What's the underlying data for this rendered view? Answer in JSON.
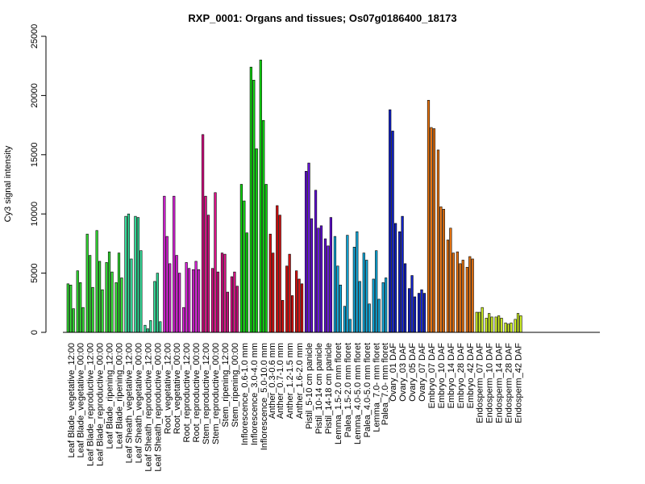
{
  "chart_data": {
    "type": "bar",
    "title": "RXP_0001: Organs and tissues; Os07g0186400_18173",
    "xlabel": "",
    "ylabel": "Cy3 signal intensity",
    "ylim": [
      0,
      25000
    ],
    "yticks": [
      0,
      5000,
      10000,
      15000,
      20000,
      25000
    ],
    "grid": false,
    "legend": "none",
    "groups": [
      {
        "label": "Leaf Blade_vegetative_12:00",
        "color": "#33dd33",
        "values": [
          4100,
          4000,
          2000
        ]
      },
      {
        "label": "Leaf Blade_vegetative_00:00",
        "color": "#33dd33",
        "values": [
          5200,
          4200,
          2100
        ]
      },
      {
        "label": "Leaf Blade_reproductive_12:00",
        "color": "#33dd33",
        "values": [
          8300,
          6500,
          3800
        ]
      },
      {
        "label": "Leaf Blade_reproductive_00:00",
        "color": "#33dd33",
        "values": [
          8600,
          6000,
          3600
        ]
      },
      {
        "label": "Leaf Blade_ripening_12:00",
        "color": "#33dd33",
        "values": [
          5900,
          6800,
          5100
        ]
      },
      {
        "label": "Leaf Blade_ripening_00:00",
        "color": "#33dd33",
        "values": [
          4200,
          6700,
          4600
        ]
      },
      {
        "label": "Leaf Sheath_vegetative_12:00",
        "color": "#33dd99",
        "values": [
          9800,
          10000,
          6200
        ]
      },
      {
        "label": "Leaf Sheath_vegetative_00:00",
        "color": "#33dd99",
        "values": [
          9800,
          9700,
          6900
        ]
      },
      {
        "label": "Leaf Sheath_reproductive_12:00",
        "color": "#33dd99",
        "values": [
          600,
          300,
          1000
        ]
      },
      {
        "label": "Leaf Sheath_reproductive_00:00",
        "color": "#33dd99",
        "values": [
          4300,
          5000,
          900
        ]
      },
      {
        "label": "Root_vegetative_12:00",
        "color": "#dd22dd",
        "values": [
          11500,
          8100,
          5800
        ]
      },
      {
        "label": "Root_vegetative_00:00",
        "color": "#dd22dd",
        "values": [
          11500,
          6500,
          5000
        ]
      },
      {
        "label": "Root_reproductive_12:00",
        "color": "#dd22dd",
        "values": [
          2100,
          5900,
          5400
        ]
      },
      {
        "label": "Root_reproductive_00:00",
        "color": "#dd22dd",
        "values": [
          5300,
          6000,
          5300
        ]
      },
      {
        "label": "Stem_reproductive_12:00",
        "color": "#dd1188",
        "values": [
          16700,
          11500,
          9900
        ]
      },
      {
        "label": "Stem_reproductive_00:00",
        "color": "#dd1188",
        "values": [
          5400,
          11800,
          5100
        ]
      },
      {
        "label": "Stem_ripening_12:00",
        "color": "#dd1188",
        "values": [
          6700,
          6600,
          3400
        ]
      },
      {
        "label": "Stem_ripening_00:00",
        "color": "#dd1188",
        "values": [
          4700,
          5100,
          3900
        ]
      },
      {
        "label": "Inflorescence_0.6-1.0 mm",
        "color": "#11dd11",
        "values": [
          12500,
          11100,
          8400
        ]
      },
      {
        "label": "Inflorescence_3.0-4.0 mm",
        "color": "#11dd11",
        "values": [
          22400,
          21300,
          15500
        ]
      },
      {
        "label": "Inflorescence_5.0-10.0 mm",
        "color": "#11dd11",
        "values": [
          23000,
          17900,
          12500
        ]
      },
      {
        "label": "Anther_0.3-0.6 mm",
        "color": "#dd1111",
        "values": [
          8300,
          6700
        ]
      },
      {
        "label": "Anther_0.7-1.0 mm",
        "color": "#dd1111",
        "values": [
          10700,
          9900,
          2700
        ]
      },
      {
        "label": "Anther_1.2-1.5 mm",
        "color": "#dd1111",
        "values": [
          5600,
          6600,
          3100
        ]
      },
      {
        "label": "Anther_1.6-2.0 mm",
        "color": "#dd1111",
        "values": [
          5200,
          4500,
          4100
        ]
      },
      {
        "label": "Pistil_5-10 cm panicle",
        "color": "#6611dd",
        "values": [
          13600,
          14300,
          9600
        ]
      },
      {
        "label": "Pistil_10-14 cm panicle",
        "color": "#6611dd",
        "values": [
          12000,
          8800,
          9000
        ]
      },
      {
        "label": "Pistil_14-18 cm panicle",
        "color": "#6611dd",
        "values": [
          7900,
          7300,
          9700
        ]
      },
      {
        "label": "Lemma_1.5-2.0 mm floret",
        "color": "#11aadd",
        "values": [
          8100,
          5600,
          4000
        ]
      },
      {
        "label": "Palea_1.5-2.0 mm floret",
        "color": "#11aadd",
        "values": [
          2200,
          8200,
          1100
        ]
      },
      {
        "label": "Lemma_4.0-5.0 mm floret",
        "color": "#11aadd",
        "values": [
          7200,
          8500,
          4300
        ]
      },
      {
        "label": "Palea_4.0-5.0 mm floret",
        "color": "#11aadd",
        "values": [
          6700,
          6100,
          2400
        ]
      },
      {
        "label": "Lemma_7.0- mm floret",
        "color": "#11aadd",
        "values": [
          4500,
          6900,
          2800
        ]
      },
      {
        "label": "Palea_7.0- mm floret",
        "color": "#11aadd",
        "values": [
          4200,
          4600
        ]
      },
      {
        "label": "Ovary_01 DAF",
        "color": "#1122cc",
        "values": [
          18800,
          17000,
          9200
        ]
      },
      {
        "label": "Ovary_03 DAF",
        "color": "#1122cc",
        "values": [
          8500,
          9800,
          5800
        ]
      },
      {
        "label": "Ovary_05 DAF",
        "color": "#1122cc",
        "values": [
          3700,
          4800,
          3000
        ]
      },
      {
        "label": "Ovary_07 DAF",
        "color": "#1122cc",
        "values": [
          3300,
          3600,
          3300
        ]
      },
      {
        "label": "Embryo_07 DAF",
        "color": "#ee7711",
        "values": [
          19600,
          17300,
          17200
        ]
      },
      {
        "label": "Embryo_10 DAF",
        "color": "#ee7711",
        "values": [
          15400,
          10600,
          10400
        ]
      },
      {
        "label": "Embryo_14 DAF",
        "color": "#ee7711",
        "values": [
          7800,
          8800,
          6700
        ]
      },
      {
        "label": "Embryo_28 DAF",
        "color": "#ee7711",
        "values": [
          6800,
          5800,
          6100
        ]
      },
      {
        "label": "Embryo_42 DAF",
        "color": "#ee7711",
        "values": [
          5500,
          6400,
          6200
        ]
      },
      {
        "label": "Endosperm_07 DAF",
        "color": "#ccee22",
        "values": [
          1700,
          1700,
          2100
        ]
      },
      {
        "label": "Endosperm_10 DAF",
        "color": "#ccee22",
        "values": [
          1200,
          1600,
          1300
        ]
      },
      {
        "label": "Endosperm_14 DAF",
        "color": "#ccee22",
        "values": [
          1300,
          1400,
          1200
        ]
      },
      {
        "label": "Endosperm_28 DAF",
        "color": "#ccee22",
        "values": [
          800,
          700,
          800
        ]
      },
      {
        "label": "Endosperm_42 DAF",
        "color": "#ccee22",
        "values": [
          1100,
          1600,
          1400
        ]
      }
    ]
  }
}
